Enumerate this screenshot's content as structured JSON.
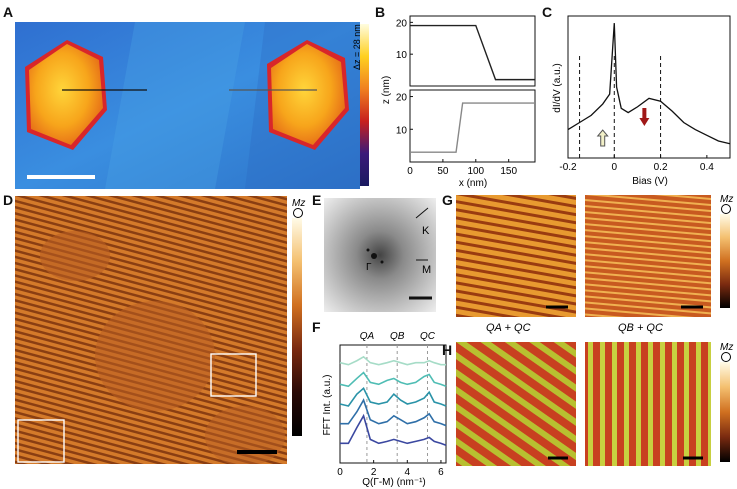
{
  "panels": {
    "A": {
      "label": "A",
      "cbar_label": "Δz = 28 nm"
    },
    "B": {
      "label": "B",
      "ylabel": "z (nm)",
      "xlabel": "x (nm)"
    },
    "C": {
      "label": "C",
      "ylabel": "dI/dV (a.u.)",
      "xlabel": "Bias (V)"
    },
    "D": {
      "label": "D",
      "cbar_label": "Mz"
    },
    "E": {
      "label": "E",
      "k_label": "K",
      "m_label": "M",
      "gamma_label": "Γ"
    },
    "F": {
      "label": "F",
      "ylabel": "FFT Int. (a.u.)",
      "xlabel": "Q(Γ-M) (nm⁻¹)",
      "qa": "QA",
      "qb": "QB",
      "qc": "QC"
    },
    "G": {
      "label": "G",
      "cbar_label": "Mz"
    },
    "H": {
      "label": "H",
      "title_left": "QA + QC",
      "title_right": "QB + QC",
      "cbar_label": "Mz"
    }
  },
  "chart_data": [
    {
      "type": "line",
      "panel": "B-top",
      "series": [
        {
          "x": [
            0,
            100,
            130,
            190
          ],
          "y": [
            19,
            19,
            2,
            2
          ]
        }
      ],
      "ylim": [
        0,
        22
      ],
      "xlim": [
        0,
        190
      ],
      "yticks": [
        "10",
        "20"
      ]
    },
    {
      "type": "line",
      "panel": "B-bottom",
      "series": [
        {
          "x": [
            0,
            70,
            80,
            190
          ],
          "y": [
            3,
            3,
            18,
            18
          ]
        }
      ],
      "ylim": [
        0,
        22
      ],
      "xlim": [
        0,
        190
      ],
      "xticks": [
        "0",
        "50",
        "100",
        "150"
      ],
      "yticks": [
        "10",
        "20"
      ]
    },
    {
      "type": "line",
      "panel": "C",
      "series": [
        {
          "x": [
            -0.2,
            -0.15,
            -0.1,
            -0.05,
            -0.02,
            0,
            0.01,
            0.03,
            0.06,
            0.1,
            0.15,
            0.2,
            0.25,
            0.3,
            0.35,
            0.4,
            0.45,
            0.5
          ],
          "y": [
            0.2,
            0.25,
            0.3,
            0.38,
            0.45,
            0.95,
            0.5,
            0.35,
            0.32,
            0.36,
            0.42,
            0.4,
            0.33,
            0.25,
            0.2,
            0.16,
            0.12,
            0.1
          ]
        }
      ],
      "xlim": [
        -0.2,
        0.5
      ],
      "xticks": [
        "-0.2",
        "0",
        "0.2",
        "0.4"
      ]
    },
    {
      "type": "line",
      "panel": "F",
      "xlim": [
        0,
        6.3
      ],
      "xticks": [
        "0",
        "2",
        "4",
        "6"
      ],
      "series": [
        {
          "color": "#a6dcc7",
          "x": [
            0,
            0.5,
            1,
            1.4,
            1.8,
            2.3,
            2.8,
            3.2,
            3.6,
            4,
            4.5,
            5,
            5.3,
            5.6,
            6,
            6.3
          ],
          "y": [
            5.1,
            5.0,
            5.2,
            5.4,
            5.1,
            5.0,
            5.1,
            5.2,
            5.1,
            5.0,
            5.1,
            5.1,
            5.2,
            5.1,
            5.0,
            5.0
          ]
        },
        {
          "color": "#4fbdb4",
          "x": [
            0,
            0.5,
            1,
            1.4,
            1.8,
            2.3,
            2.8,
            3.2,
            3.6,
            4,
            4.5,
            5,
            5.3,
            5.6,
            6,
            6.3
          ],
          "y": [
            4.0,
            3.9,
            4.3,
            4.6,
            4.1,
            4.0,
            4.2,
            4.3,
            4.1,
            4.0,
            4.1,
            4.4,
            4.5,
            4.1,
            4.0,
            3.9
          ]
        },
        {
          "color": "#2a93a8",
          "x": [
            0,
            0.5,
            1,
            1.4,
            1.8,
            2.3,
            2.8,
            3.2,
            3.6,
            4,
            4.5,
            5,
            5.3,
            5.6,
            6,
            6.3
          ],
          "y": [
            3.0,
            2.9,
            3.5,
            3.8,
            3.1,
            3.0,
            3.1,
            3.5,
            3.2,
            3.0,
            3.1,
            3.3,
            3.6,
            3.1,
            3.0,
            2.9
          ]
        },
        {
          "color": "#2f6fa8",
          "x": [
            0,
            0.5,
            1,
            1.4,
            1.8,
            2.3,
            2.8,
            3.2,
            3.6,
            4,
            4.5,
            5,
            5.3,
            5.6,
            6,
            6.3
          ],
          "y": [
            2.0,
            2.0,
            2.6,
            3.2,
            2.2,
            2.0,
            2.1,
            2.4,
            2.2,
            2.0,
            2.1,
            2.3,
            2.5,
            2.1,
            2.0,
            1.9
          ]
        },
        {
          "color": "#3b48a0",
          "x": [
            0,
            0.5,
            1,
            1.4,
            1.8,
            2.3,
            2.8,
            3.2,
            3.6,
            4,
            4.5,
            5,
            5.3,
            5.6,
            6,
            6.3
          ],
          "y": [
            1.0,
            1.0,
            1.8,
            2.4,
            1.2,
            1.0,
            1.1,
            1.2,
            1.1,
            1.0,
            1.1,
            1.2,
            1.3,
            1.1,
            1.0,
            0.9
          ]
        }
      ]
    }
  ]
}
